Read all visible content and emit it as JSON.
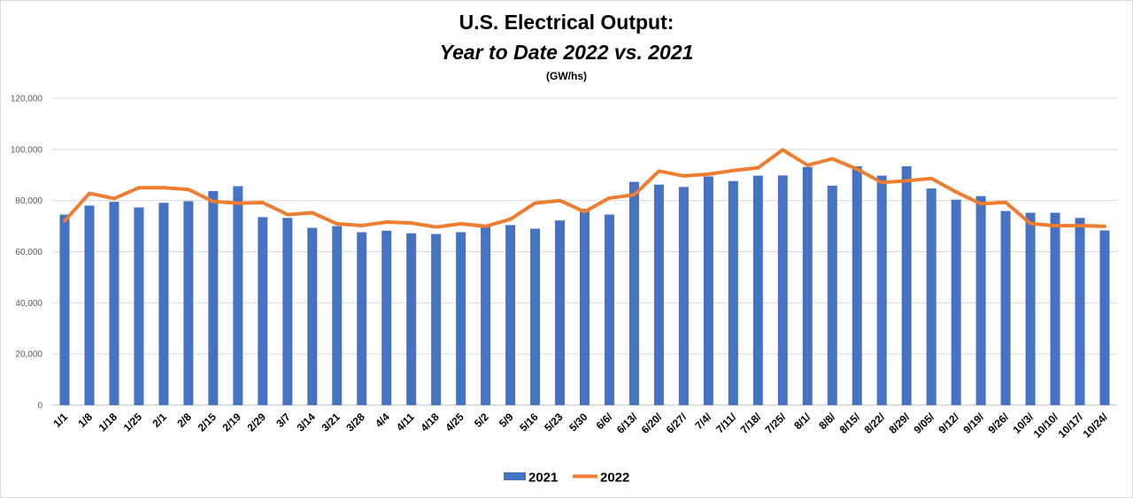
{
  "chart_data": {
    "type": "bar+line",
    "title": "U.S. Electrical Output:",
    "subtitle": "Year to Date 2022 vs. 2021",
    "unit": "(GW/hs)",
    "ylim": [
      0,
      120000
    ],
    "yticks": [
      "0",
      "20,000",
      "40,000",
      "60,000",
      "80,000",
      "100,000",
      "120,000"
    ],
    "ytick_values": [
      0,
      20000,
      40000,
      60000,
      80000,
      100000,
      120000
    ],
    "grid": true,
    "legend": "bottom",
    "categories": [
      "1/1",
      "1/8",
      "1/18",
      "1/25",
      "2/1",
      "2/8",
      "2/15",
      "2/19",
      "2/29",
      "3/7",
      "3/14",
      "3/21",
      "3/28",
      "4/4",
      "4/11",
      "4/18",
      "4/25",
      "5/2",
      "5/9",
      "5/16",
      "5/23",
      "5/30",
      "6/6/",
      "6/13/",
      "6/20/",
      "6/27/",
      "7/4/",
      "7/11/",
      "7/18/",
      "7/25/",
      "8/1/",
      "8/8/",
      "8/15/",
      "8/22/",
      "8/29/",
      "9/05/",
      "9/12/",
      "9/19/",
      "9/26/",
      "10/3/",
      "10/10/",
      "10/17/",
      "10/24/"
    ],
    "series": [
      {
        "name": "2021",
        "kind": "bar",
        "color": "#4472c4",
        "values": [
          74500,
          78000,
          79500,
          77300,
          79100,
          79700,
          83700,
          85600,
          73500,
          73200,
          69300,
          70000,
          67600,
          68200,
          67200,
          66900,
          67600,
          70000,
          70400,
          69000,
          72200,
          76800,
          74500,
          87300,
          86200,
          85300,
          89400,
          87600,
          89700,
          89800,
          93100,
          85800,
          93400,
          89700,
          93400,
          84700,
          80300,
          81700,
          75900,
          75200,
          75200,
          73200,
          68300
        ]
      },
      {
        "name": "2022",
        "kind": "line",
        "color": "#ed7d31",
        "values": [
          72000,
          82800,
          80800,
          85000,
          85000,
          84300,
          79600,
          78900,
          79200,
          74500,
          75200,
          70900,
          70200,
          71600,
          71200,
          69600,
          70900,
          69900,
          72700,
          79000,
          80000,
          75600,
          81000,
          82200,
          91500,
          89600,
          90300,
          91700,
          92800,
          99800,
          93800,
          96300,
          92300,
          87000,
          87700,
          88600,
          83300,
          78700,
          79300,
          71000,
          70100,
          70200,
          69900
        ]
      }
    ]
  }
}
